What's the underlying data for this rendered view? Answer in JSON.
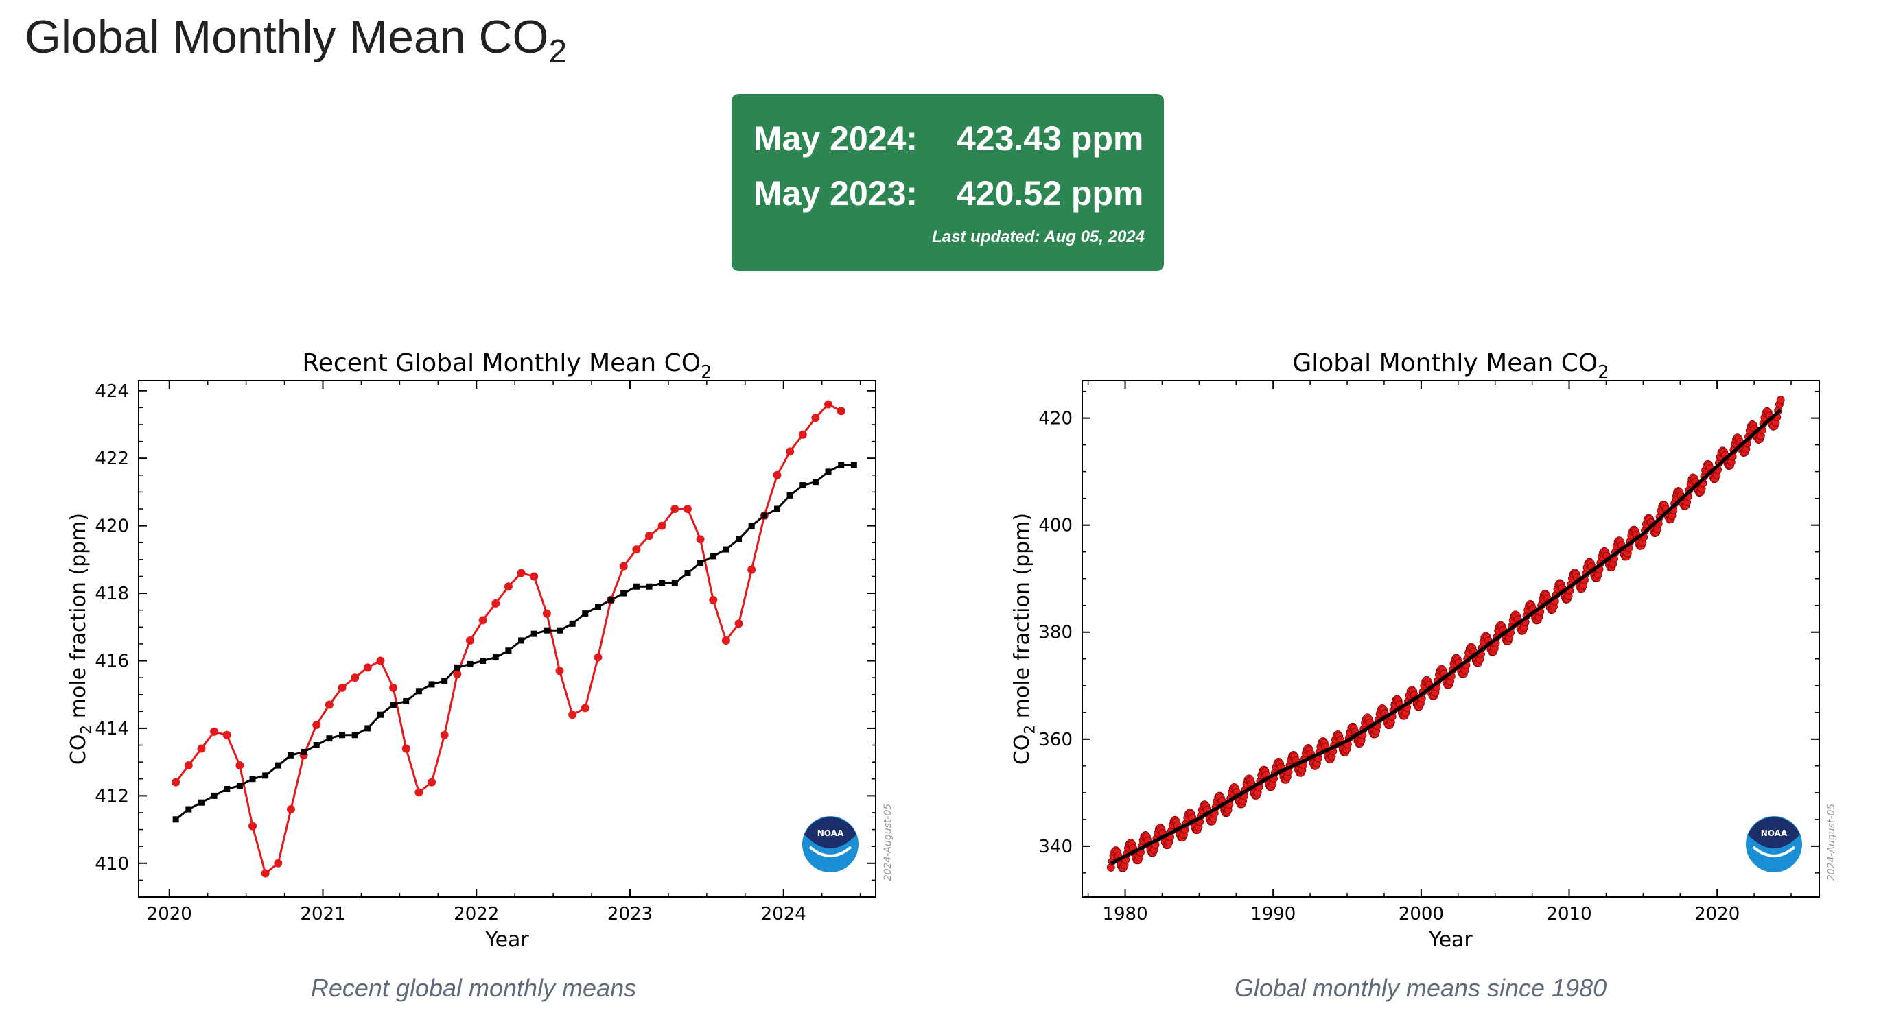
{
  "page": {
    "title": "Global Monthly Mean CO",
    "title_sub": "2"
  },
  "stats": {
    "row1_label": "May 2024:",
    "row1_value": "423.43 ppm",
    "row2_label": "May 2023:",
    "row2_value": "420.52 ppm",
    "updated": "Last updated: Aug 05, 2024",
    "box_color": "#2d8652"
  },
  "captions": {
    "left": "Recent global monthly means",
    "right": "Global monthly means since 1980"
  },
  "colors": {
    "monthly": "#e31a1c",
    "trend": "#000000",
    "noaa_blue": "#1a8fd6",
    "noaa_navy": "#1c2f6b"
  },
  "chart_data": [
    {
      "type": "line",
      "title": "Recent Global Monthly Mean CO",
      "title_sub": "2",
      "xlabel": "Year",
      "ylabel_pre": "CO",
      "ylabel_sub": "2",
      "ylabel_post": " mole fraction (ppm)",
      "xlim": [
        2019.8,
        2024.6
      ],
      "ylim": [
        409.0,
        424.3
      ],
      "xticks": [
        2020,
        2021,
        2022,
        2023,
        2024
      ],
      "yticks": [
        410,
        412,
        414,
        416,
        418,
        420,
        422,
        424
      ],
      "watermark": "2024-August-05",
      "logo_text": "NOAA",
      "grid": false,
      "x_start": 2020.042,
      "x_step": 0.08333,
      "series": [
        {
          "role": "monthly",
          "values": [
            412.4,
            412.9,
            413.4,
            413.9,
            413.8,
            412.9,
            411.1,
            409.7,
            410.0,
            411.6,
            413.2,
            414.1,
            414.7,
            415.2,
            415.5,
            415.8,
            416.0,
            415.2,
            413.4,
            412.1,
            412.4,
            413.8,
            415.6,
            416.6,
            417.2,
            417.7,
            418.2,
            418.6,
            418.5,
            417.4,
            415.7,
            414.4,
            414.6,
            416.1,
            417.8,
            418.8,
            419.3,
            419.7,
            420.0,
            420.5,
            420.5,
            419.6,
            417.8,
            416.6,
            417.1,
            418.7,
            420.3,
            421.5,
            422.2,
            422.7,
            423.2,
            423.6,
            423.4
          ]
        },
        {
          "role": "trend",
          "values": [
            411.3,
            411.6,
            411.8,
            412.0,
            412.2,
            412.3,
            412.5,
            412.6,
            412.9,
            413.2,
            413.3,
            413.5,
            413.7,
            413.8,
            413.8,
            414.0,
            414.4,
            414.7,
            414.8,
            415.1,
            415.3,
            415.4,
            415.8,
            415.9,
            416.0,
            416.1,
            416.3,
            416.6,
            416.8,
            416.9,
            416.9,
            417.1,
            417.4,
            417.6,
            417.8,
            418.0,
            418.2,
            418.2,
            418.3,
            418.3,
            418.6,
            418.9,
            419.1,
            419.3,
            419.6,
            420.0,
            420.3,
            420.5,
            420.9,
            421.2,
            421.3,
            421.6,
            421.8,
            421.8
          ]
        }
      ]
    },
    {
      "type": "line",
      "title": "Global Monthly Mean CO",
      "title_sub": "2",
      "xlabel": "Year",
      "ylabel_pre": "CO",
      "ylabel_sub": "2",
      "ylabel_post": " mole fraction (ppm)",
      "xlim": [
        1977.1,
        2026.9
      ],
      "ylim": [
        330.5,
        427.0
      ],
      "xticks": [
        1980,
        1990,
        2000,
        2010,
        2020
      ],
      "yticks": [
        340,
        360,
        380,
        400,
        420
      ],
      "watermark": "2024-August-05",
      "logo_text": "NOAA",
      "grid": false,
      "x_start": 1979.04,
      "x_end": 2024.37,
      "trend_knots": {
        "years": [
          1979.0,
          1985.0,
          1990.0,
          1995.0,
          2000.0,
          2005.0,
          2010.0,
          2015.0,
          2020.0,
          2024.4
        ],
        "ppm": [
          336.7,
          345.2,
          353.3,
          359.7,
          368.3,
          378.6,
          388.4,
          398.4,
          411.0,
          421.8
        ]
      },
      "seasonal_amplitude": 2.0
    }
  ]
}
